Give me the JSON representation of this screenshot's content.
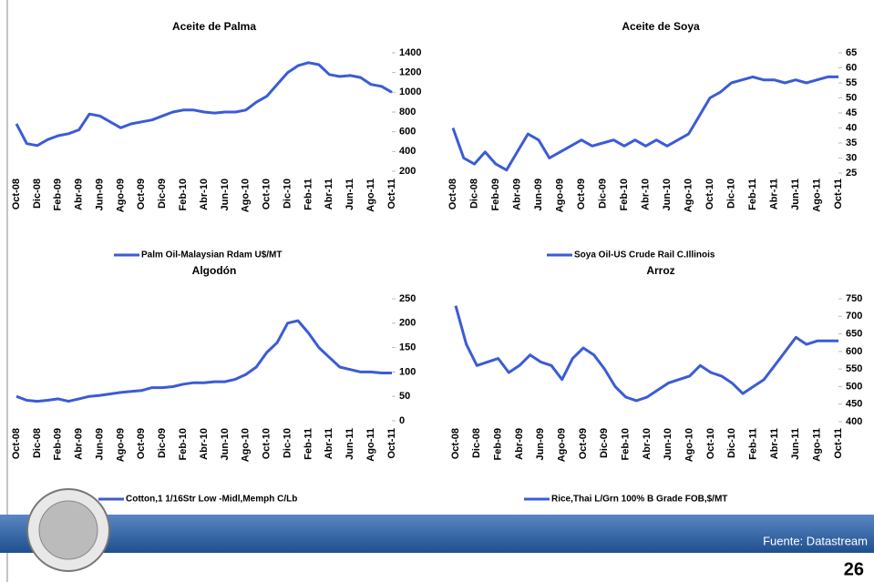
{
  "chart_data": [
    {
      "type": "line",
      "title": "Aceite de Palma",
      "categories": [
        "Oct-08",
        null,
        "Dic-08",
        null,
        "Feb-09",
        null,
        "Abr-09",
        null,
        "Jun-09",
        null,
        "Ago-09",
        null,
        "Oct-09",
        null,
        "Dic-09",
        null,
        "Feb-10",
        null,
        "Abr-10",
        null,
        "Jun-10",
        null,
        "Ago-10",
        null,
        "Oct-10",
        null,
        "Dic-10",
        null,
        "Feb-11",
        null,
        "Abr-11",
        null,
        "Jun-11",
        null,
        "Ago-11",
        null,
        "Oct-11"
      ],
      "series": [
        {
          "name": "Palm Oil-Malaysian Rdam U$/MT",
          "color": "#3b5bd6",
          "values": [
            680,
            480,
            460,
            520,
            560,
            580,
            620,
            780,
            760,
            700,
            640,
            680,
            700,
            720,
            760,
            800,
            820,
            820,
            800,
            790,
            800,
            800,
            820,
            900,
            960,
            1080,
            1200,
            1270,
            1300,
            1280,
            1180,
            1160,
            1170,
            1150,
            1080,
            1060,
            1000
          ]
        }
      ],
      "ylim": [
        200,
        1400
      ],
      "yticks": [
        200,
        400,
        600,
        800,
        1000,
        1200,
        1400
      ]
    },
    {
      "type": "line",
      "title": "Aceite de Soya",
      "categories": [
        "Oct-08",
        null,
        "Dic-08",
        null,
        "Feb-09",
        null,
        "Abr-09",
        null,
        "Jun-09",
        null,
        "Ago-09",
        null,
        "Oct-09",
        null,
        "Dic-09",
        null,
        "Feb-10",
        null,
        "Abr-10",
        null,
        "Jun-10",
        null,
        "Ago-10",
        null,
        "Oct-10",
        null,
        "Dic-10",
        null,
        "Feb-11",
        null,
        "Abr-11",
        null,
        "Jun-11",
        null,
        "Ago-11",
        null,
        "Oct-11"
      ],
      "series": [
        {
          "name": "Soya Oil-US Crude Rail C.Illinois",
          "color": "#3b5bd6",
          "values": [
            40,
            30,
            28,
            32,
            28,
            26,
            32,
            38,
            36,
            30,
            32,
            34,
            36,
            34,
            35,
            36,
            34,
            36,
            34,
            36,
            34,
            36,
            38,
            44,
            50,
            52,
            55,
            56,
            57,
            56,
            56,
            55,
            56,
            55,
            56,
            57,
            57
          ]
        }
      ],
      "ylim": [
        25,
        65
      ],
      "yticks": [
        25,
        30,
        35,
        40,
        45,
        50,
        55,
        60,
        65
      ]
    },
    {
      "type": "line",
      "title": "Algodón",
      "categories": [
        "Oct-08",
        null,
        "Dic-08",
        null,
        "Feb-09",
        null,
        "Abr-09",
        null,
        "Jun-09",
        null,
        "Ago-09",
        null,
        "Oct-09",
        null,
        "Dic-09",
        null,
        "Feb-10",
        null,
        "Abr-10",
        null,
        "Jun-10",
        null,
        "Ago-10",
        null,
        "Oct-10",
        null,
        "Dic-10",
        null,
        "Feb-11",
        null,
        "Abr-11",
        null,
        "Jun-11",
        null,
        "Ago-11",
        null,
        "Oct-11"
      ],
      "series": [
        {
          "name": "Cotton,1 1/16Str Low -Midl,Memph C/Lb",
          "color": "#3b5bd6",
          "values": [
            50,
            42,
            40,
            42,
            45,
            40,
            45,
            50,
            52,
            55,
            58,
            60,
            62,
            68,
            68,
            70,
            75,
            78,
            78,
            80,
            80,
            85,
            95,
            110,
            140,
            160,
            200,
            205,
            180,
            150,
            130,
            110,
            105,
            100,
            100,
            98,
            98
          ]
        }
      ],
      "ylim": [
        0,
        250
      ],
      "yticks": [
        0,
        50,
        100,
        150,
        200,
        250
      ]
    },
    {
      "type": "line",
      "title": "Arroz",
      "categories": [
        "Oct-08",
        null,
        "Dic-08",
        null,
        "Feb-09",
        null,
        "Abr-09",
        null,
        "Jun-09",
        null,
        "Ago-09",
        null,
        "Oct-09",
        null,
        "Dic-09",
        null,
        "Feb-10",
        null,
        "Abr-10",
        null,
        "Jun-10",
        null,
        "Ago-10",
        null,
        "Oct-10",
        null,
        "Dic-10",
        null,
        "Feb-11",
        null,
        "Abr-11",
        null,
        "Jun-11",
        null,
        "Ago-11",
        null,
        "Oct-11"
      ],
      "series": [
        {
          "name": "Rice,Thai L/Grn 100% B Grade FOB,$/MT",
          "color": "#3b5bd6",
          "values": [
            730,
            620,
            560,
            570,
            580,
            540,
            560,
            590,
            570,
            560,
            520,
            580,
            610,
            590,
            550,
            500,
            470,
            460,
            470,
            490,
            510,
            520,
            530,
            560,
            540,
            530,
            510,
            480,
            500,
            520,
            560,
            600,
            640,
            620,
            630,
            630,
            630
          ]
        }
      ],
      "ylim": [
        400,
        750
      ],
      "yticks": [
        400,
        450,
        500,
        550,
        600,
        650,
        700,
        750
      ]
    }
  ],
  "footer": {
    "source": "Fuente: Datastream",
    "page_number": "26"
  }
}
